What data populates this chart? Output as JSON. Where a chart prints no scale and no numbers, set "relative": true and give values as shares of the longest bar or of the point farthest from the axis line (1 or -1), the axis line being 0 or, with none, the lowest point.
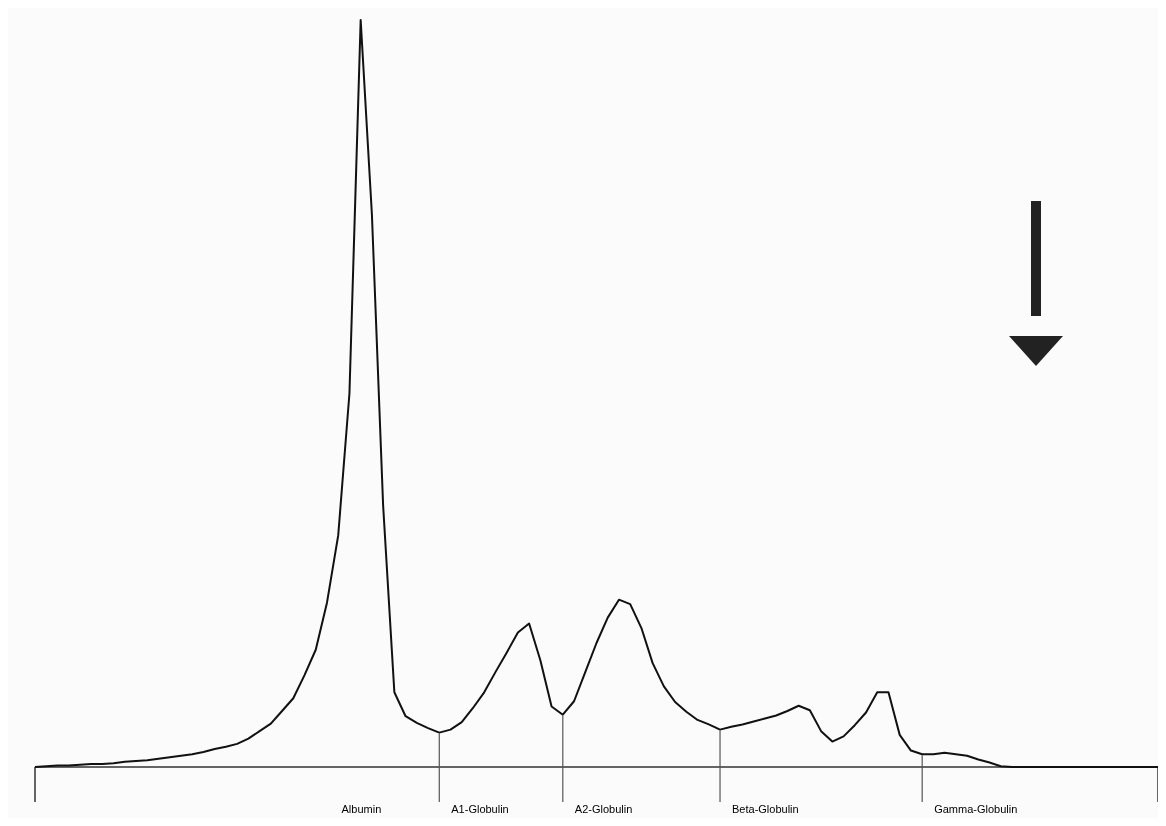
{
  "chart_data": {
    "type": "line",
    "relative": true,
    "color": "#111111",
    "line_style": "solid",
    "marker": "none",
    "grid": false,
    "legend": false,
    "categories": [
      null,
      null,
      null,
      null,
      null,
      null,
      null,
      null,
      null,
      null,
      null,
      null,
      null,
      null,
      null,
      null,
      null,
      null,
      null,
      null,
      null,
      null,
      null,
      null,
      null,
      null,
      null,
      null,
      null,
      null,
      null,
      null,
      null,
      null,
      null,
      null,
      null,
      null,
      null,
      null,
      null,
      null,
      null,
      null,
      null,
      null,
      null,
      null,
      null,
      null,
      null,
      null,
      null,
      null,
      null,
      null,
      null,
      null,
      null,
      null,
      null,
      null,
      null,
      null,
      null,
      null,
      null,
      null,
      null,
      null,
      null,
      null,
      null,
      null,
      null,
      null,
      null,
      null,
      null,
      null,
      null,
      null,
      null,
      null,
      null,
      null,
      null,
      null,
      null,
      null,
      null,
      null,
      null,
      null,
      null,
      null,
      null,
      null,
      null,
      null,
      null
    ],
    "values": [
      0,
      0.001,
      0.002,
      0.002,
      0.003,
      0.004,
      0.004,
      0.005,
      0.007,
      0.008,
      0.009,
      0.011,
      0.013,
      0.015,
      0.017,
      0.02,
      0.024,
      0.027,
      0.031,
      0.038,
      0.048,
      0.058,
      0.075,
      0.092,
      0.123,
      0.157,
      0.22,
      0.31,
      0.5,
      1,
      0.74,
      0.35,
      0.1,
      0.068,
      0.059,
      0.052,
      0.046,
      0.05,
      0.06,
      0.079,
      0.1,
      0.127,
      0.153,
      0.18,
      0.192,
      0.143,
      0.081,
      0.07,
      0.088,
      0.127,
      0.166,
      0.2,
      0.224,
      0.218,
      0.186,
      0.139,
      0.108,
      0.087,
      0.074,
      0.063,
      0.057,
      0.05,
      0.054,
      0.057,
      0.061,
      0.065,
      0.069,
      0.075,
      0.082,
      0.076,
      0.048,
      0.034,
      0.041,
      0.056,
      0.073,
      0.1,
      0.1,
      0.043,
      0.022,
      0.017,
      0.017,
      0.019,
      0.017,
      0.015,
      0.01,
      0.006,
      0.001,
      0,
      0,
      0,
      0,
      0,
      0,
      0,
      0,
      0,
      0,
      0,
      0,
      0,
      0
    ],
    "annotations": [
      "Albumin",
      "A1-Globulin",
      "A2-Globulin",
      "Beta-Globulin",
      "Gamma-Globulin"
    ]
  }
}
